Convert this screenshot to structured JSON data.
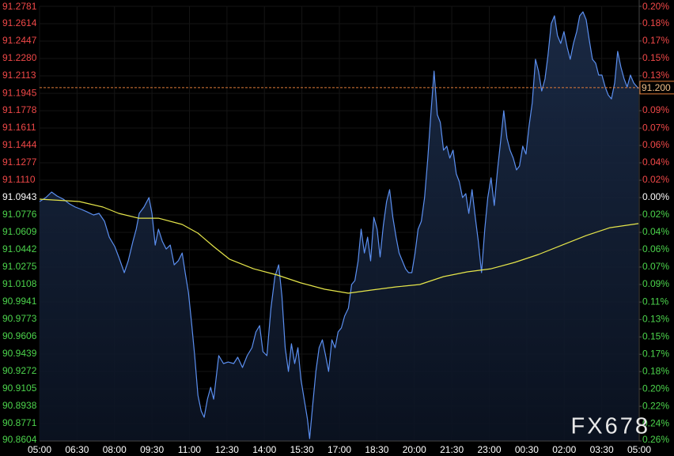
{
  "chart_data": {
    "type": "line",
    "watermark": "FX678",
    "xlim": [
      0,
      24
    ],
    "xticks": [
      {
        "value": 0,
        "label": "05:00"
      },
      {
        "value": 1.5,
        "label": "06:30"
      },
      {
        "value": 3,
        "label": "08:00"
      },
      {
        "value": 4.5,
        "label": "09:30"
      },
      {
        "value": 6,
        "label": "11:00"
      },
      {
        "value": 7.5,
        "label": "12:30"
      },
      {
        "value": 9,
        "label": "14:00"
      },
      {
        "value": 10.5,
        "label": "15:30"
      },
      {
        "value": 12,
        "label": "17:00"
      },
      {
        "value": 13.5,
        "label": "18:30"
      },
      {
        "value": 15,
        "label": "20:00"
      },
      {
        "value": 16.5,
        "label": "21:30"
      },
      {
        "value": 18,
        "label": "23:00"
      },
      {
        "value": 19.5,
        "label": "00:30"
      },
      {
        "value": 21,
        "label": "02:00"
      },
      {
        "value": 22.5,
        "label": "03:30"
      },
      {
        "value": 24,
        "label": "05:00"
      }
    ],
    "ylim": [
      90.8604,
      91.2781
    ],
    "yticks": [
      {
        "value": 91.2781,
        "label": "91.2781"
      },
      {
        "value": 91.2614,
        "label": "91.2614"
      },
      {
        "value": 91.2447,
        "label": "91.2447"
      },
      {
        "value": 91.228,
        "label": "91.2280"
      },
      {
        "value": 91.2113,
        "label": "91.2113"
      },
      {
        "value": 91.1945,
        "label": "91.1945"
      },
      {
        "value": 91.1778,
        "label": "91.1778"
      },
      {
        "value": 91.1611,
        "label": "91.1611"
      },
      {
        "value": 91.1444,
        "label": "91.1444"
      },
      {
        "value": 91.1277,
        "label": "91.1277"
      },
      {
        "value": 91.111,
        "label": "91.1110"
      },
      {
        "value": 91.0943,
        "label": "91.0943"
      },
      {
        "value": 91.0776,
        "label": "91.0776"
      },
      {
        "value": 91.0609,
        "label": "91.0609"
      },
      {
        "value": 91.0442,
        "label": "91.0442"
      },
      {
        "value": 91.0275,
        "label": "91.0275"
      },
      {
        "value": 91.0108,
        "label": "91.0108"
      },
      {
        "value": 90.9941,
        "label": "90.9941"
      },
      {
        "value": 90.9773,
        "label": "90.9773"
      },
      {
        "value": 90.9606,
        "label": "90.9606"
      },
      {
        "value": 90.9439,
        "label": "90.9439"
      },
      {
        "value": 90.9272,
        "label": "90.9272"
      },
      {
        "value": 90.9105,
        "label": "90.9105"
      },
      {
        "value": 90.8938,
        "label": "90.8938"
      },
      {
        "value": 90.8771,
        "label": "90.8771"
      },
      {
        "value": 90.8604,
        "label": "90.8604"
      }
    ],
    "y2lim": [
      -0.2568,
      0.2018
    ],
    "y2ticks": [
      {
        "value": 0.2018,
        "label": "0.20%"
      },
      {
        "value": 0.1835,
        "label": "0.18%"
      },
      {
        "value": 0.1652,
        "label": "0.17%"
      },
      {
        "value": 0.1468,
        "label": "0.15%"
      },
      {
        "value": 0.1285,
        "label": "0.13%"
      },
      {
        "value": 0.0917,
        "label": "0.09%"
      },
      {
        "value": 0.0733,
        "label": "0.07%"
      },
      {
        "value": 0.055,
        "label": "0.06%"
      },
      {
        "value": 0.0367,
        "label": "0.04%"
      },
      {
        "value": 0.0183,
        "label": "0.02%"
      },
      {
        "value": 0,
        "label": "0.00%"
      },
      {
        "value": -0.0183,
        "label": "0.02%"
      },
      {
        "value": -0.0367,
        "label": "0.04%"
      },
      {
        "value": -0.055,
        "label": "0.06%"
      },
      {
        "value": -0.0733,
        "label": "0.07%"
      },
      {
        "value": -0.0917,
        "label": "0.09%"
      },
      {
        "value": -0.1102,
        "label": "0.11%"
      },
      {
        "value": -0.1287,
        "label": "0.13%"
      },
      {
        "value": -0.147,
        "label": "0.15%"
      },
      {
        "value": -0.1653,
        "label": "0.17%"
      },
      {
        "value": -0.1836,
        "label": "0.18%"
      },
      {
        "value": -0.2019,
        "label": "0.20%"
      },
      {
        "value": -0.2202,
        "label": "0.22%"
      },
      {
        "value": -0.2386,
        "label": "0.24%"
      },
      {
        "value": -0.2568,
        "label": "0.26%"
      }
    ],
    "up_color": "#f04848",
    "down_color": "#4cd44c",
    "zero_color": "#ffffff",
    "grid": true,
    "reference_line": {
      "value": 91.2,
      "label": "91.200",
      "color": "#e07b39"
    },
    "series": [
      {
        "color": "#5b8ff0",
        "area": true,
        "x": [
          0,
          0.25,
          0.48,
          0.7,
          0.95,
          1.2,
          1.43,
          1.68,
          1.9,
          2.16,
          2.38,
          2.6,
          2.79,
          3.01,
          3.17,
          3.39,
          3.55,
          3.74,
          3.87,
          3.99,
          4.18,
          4.38,
          4.5,
          4.63,
          4.76,
          4.91,
          5.07,
          5.23,
          5.39,
          5.55,
          5.71,
          5.83,
          5.96,
          6.09,
          6.21,
          6.34,
          6.47,
          6.59,
          6.72,
          6.85,
          6.97,
          7.17,
          7.36,
          7.55,
          7.77,
          7.93,
          8.12,
          8.31,
          8.5,
          8.66,
          8.81,
          8.94,
          9.1,
          9.26,
          9.42,
          9.57,
          9.7,
          9.83,
          9.96,
          10.08,
          10.21,
          10.34,
          10.46,
          10.59,
          10.72,
          10.81,
          10.94,
          11.06,
          11.19,
          11.32,
          11.45,
          11.57,
          11.7,
          11.83,
          11.95,
          12.08,
          12.21,
          12.36,
          12.49,
          12.62,
          12.75,
          12.87,
          13,
          13.13,
          13.25,
          13.38,
          13.51,
          13.63,
          13.76,
          13.89,
          14.01,
          14.14,
          14.27,
          14.39,
          14.52,
          14.65,
          14.77,
          14.9,
          15.03,
          15.15,
          15.28,
          15.41,
          15.54,
          15.66,
          15.79,
          15.92,
          16.04,
          16.17,
          16.3,
          16.42,
          16.55,
          16.68,
          16.8,
          16.93,
          17.06,
          17.18,
          17.31,
          17.44,
          17.56,
          17.69,
          17.82,
          17.94,
          18.07,
          18.2,
          18.33,
          18.45,
          18.58,
          18.71,
          18.83,
          18.96,
          19.09,
          19.21,
          19.34,
          19.47,
          19.59,
          19.72,
          19.85,
          19.97,
          20.1,
          20.23,
          20.35,
          20.48,
          20.61,
          20.73,
          20.86,
          20.99,
          21.12,
          21.24,
          21.37,
          21.5,
          21.62,
          21.75,
          21.88,
          22,
          22.13,
          22.26,
          22.38,
          22.51,
          22.64,
          22.76,
          22.89,
          23.02,
          23.14,
          23.27,
          23.4,
          23.52,
          23.65,
          23.78,
          23.97
        ],
        "values": [
          91.0905,
          91.0943,
          91.0996,
          91.0958,
          91.0928,
          91.0882,
          91.0852,
          91.0829,
          91.0806,
          91.0776,
          91.0791,
          91.0715,
          91.0563,
          91.0472,
          91.0373,
          91.0222,
          91.0335,
          91.0525,
          91.0639,
          91.0791,
          91.0852,
          91.0943,
          91.0791,
          91.0487,
          91.0639,
          91.0525,
          91.0449,
          91.0487,
          91.0297,
          91.0335,
          91.0411,
          91.0222,
          91.0032,
          90.9728,
          90.9424,
          90.9044,
          90.8892,
          90.8832,
          90.9006,
          90.912,
          90.9006,
          90.9424,
          90.9348,
          90.9363,
          90.9348,
          90.9409,
          90.931,
          90.9424,
          90.95,
          90.9652,
          90.9713,
          90.9462,
          90.9424,
          90.988,
          91.0184,
          91.0297,
          90.9994,
          90.95,
          90.9272,
          90.9538,
          90.9348,
          90.95,
          90.9196,
          90.9006,
          90.8816,
          90.8627,
          90.8968,
          90.9272,
          90.95,
          90.9576,
          90.9424,
          90.9272,
          90.9576,
          90.95,
          90.9652,
          90.969,
          90.9804,
          90.988,
          91.0108,
          91.0146,
          91.0335,
          91.0639,
          91.0411,
          91.0563,
          91.0335,
          91.0753,
          91.0639,
          91.0373,
          91.0677,
          91.0905,
          91.1019,
          91.0753,
          91.0563,
          91.0411,
          91.0335,
          91.0259,
          91.0222,
          91.0222,
          91.0411,
          91.0639,
          91.0715,
          91.0943,
          91.1323,
          91.174,
          91.2158,
          91.174,
          91.1665,
          91.1399,
          91.1437,
          91.1323,
          91.1399,
          91.1171,
          91.1095,
          91.0943,
          91.0981,
          91.0791,
          91.1019,
          91.0753,
          91.0525,
          91.0222,
          91.0639,
          91.0943,
          91.1133,
          91.0867,
          91.1209,
          91.1475,
          91.1778,
          91.1513,
          91.1399,
          91.1323,
          91.1209,
          91.1247,
          91.1437,
          91.1361,
          91.1627,
          91.1854,
          91.2272,
          91.2158,
          91.1968,
          91.2082,
          91.231,
          91.2614,
          91.269,
          91.25,
          91.2424,
          91.2538,
          91.2386,
          91.2272,
          91.2424,
          91.2538,
          91.269,
          91.2728,
          91.2652,
          91.2462,
          91.2272,
          91.2234,
          91.212,
          91.212,
          91.2006,
          91.193,
          91.1892,
          91.2044,
          91.2348,
          91.2196,
          91.2082,
          91.2006,
          91.212,
          91.2044,
          91.1991
        ]
      },
      {
        "color": "#e6e64a",
        "area": false,
        "x": [
          0,
          1.59,
          2.54,
          3.17,
          3.96,
          4.76,
          5.71,
          6.34,
          6.97,
          7.61,
          8.56,
          9.51,
          10.46,
          11.41,
          12.36,
          13.32,
          14.27,
          15.22,
          16.17,
          17.12,
          18.07,
          19.02,
          19.97,
          20.92,
          21.88,
          22.83,
          23.97
        ],
        "values": [
          91.0928,
          91.0905,
          91.0852,
          91.0791,
          91.0745,
          91.0745,
          91.0685,
          91.0601,
          91.0472,
          91.035,
          91.0259,
          91.0199,
          91.0123,
          91.0062,
          91.0024,
          91.0055,
          91.0085,
          91.0108,
          91.0184,
          91.0229,
          91.0259,
          91.032,
          91.0396,
          91.0487,
          91.0578,
          91.0654,
          91.0693
        ]
      }
    ]
  }
}
